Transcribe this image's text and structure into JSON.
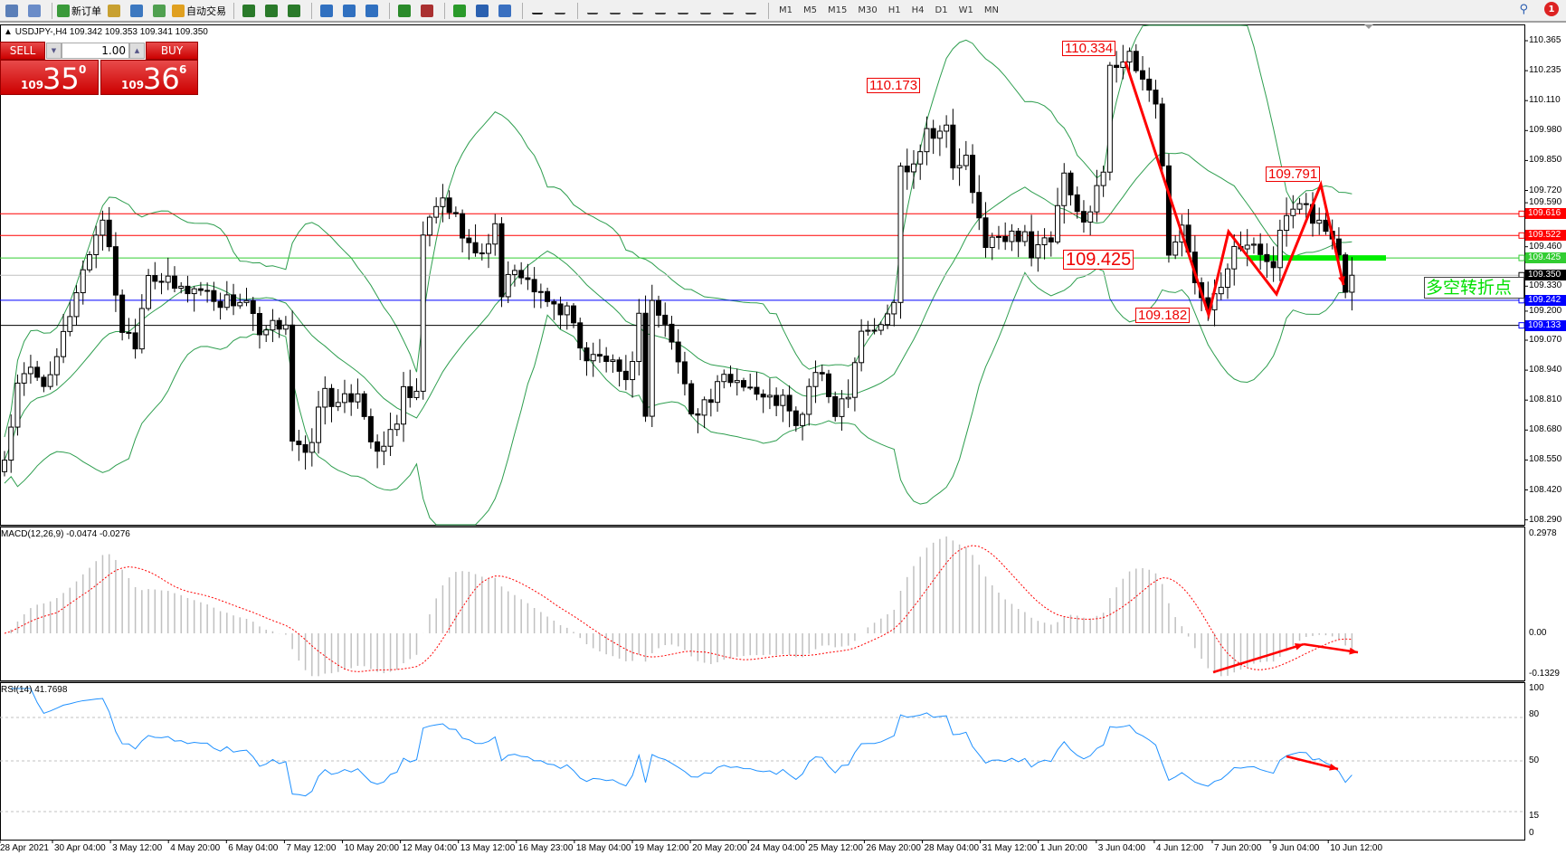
{
  "toolbar": {
    "new_order": "新订单",
    "auto_trading": "自动交易",
    "timeframes": [
      "M1",
      "M5",
      "M15",
      "M30",
      "H1",
      "H4",
      "D1",
      "W1",
      "MN"
    ],
    "notification_count": "1",
    "icons": [
      "file-icon",
      "zoom-chart-icon",
      "new-order-icon",
      "gold-icon",
      "history-icon",
      "signal-icon",
      "auto-trading-icon",
      "bar-chart-icon",
      "candle-chart-icon",
      "line-chart-icon",
      "zoom-in-icon",
      "zoom-out-icon",
      "tile-windows-icon",
      "auto-scroll-icon",
      "chart-shift-icon",
      "indicators-icon",
      "periods-icon",
      "templates-icon",
      "cursor-icon",
      "crosshair-icon",
      "vertical-line-icon",
      "horizontal-line-icon",
      "trendline-icon",
      "equidistant-channel-icon",
      "fibonacci-icon",
      "text-icon",
      "text-label-icon",
      "arrows-icon"
    ]
  },
  "symbol": {
    "info": "USDJPY-,H4  109.342 109.353 109.341 109.350"
  },
  "trade": {
    "sell": "SELL",
    "buy": "BUY",
    "lot": "1.00",
    "sell_big": "109",
    "sell_main": "35",
    "sell_sup": "0",
    "buy_big": "109",
    "buy_main": "36",
    "buy_sup": "6",
    "color": "#d01010"
  },
  "price_axis": [
    "110.365",
    "110.235",
    "110.110",
    "109.980",
    "109.850",
    "109.720",
    "109.590",
    "109.460",
    "109.330",
    "109.200",
    "109.070",
    "108.940",
    "108.810",
    "108.680",
    "108.550",
    "108.420",
    "108.290"
  ],
  "hlines": [
    {
      "price": 109.616,
      "label": "109.616",
      "color": "#ff0000"
    },
    {
      "price": 109.522,
      "label": "109.522",
      "color": "#ff0000"
    },
    {
      "price": 109.425,
      "label": "109.425",
      "color": "#32cd32"
    },
    {
      "price": 109.35,
      "label": "109.350",
      "color": "#000000"
    },
    {
      "price": 109.242,
      "label": "109.242",
      "color": "#0000ff"
    },
    {
      "price": 109.133,
      "label": "109.133",
      "color": "#0000ff"
    }
  ],
  "annotations": {
    "a1": "110.334",
    "a2": "110.173",
    "a3": "109.791",
    "a4": "109.425",
    "a5": "109.182",
    "turning_point": "多空转折点"
  },
  "macd": {
    "label": "MACD(12,26,9) -0.0474 -0.0276",
    "axis": [
      "0.2978",
      "0.00",
      "-0.1329"
    ]
  },
  "rsi": {
    "label": "RSI(14) 41.7698",
    "axis": [
      "100",
      "80",
      "50",
      "15",
      "0"
    ]
  },
  "time_axis": [
    "28 Apr 2021",
    "30 Apr 04:00",
    "3 May 12:00",
    "4 May 20:00",
    "6 May 04:00",
    "7 May 12:00",
    "10 May 20:00",
    "12 May 04:00",
    "13 May 12:00",
    "16 May 23:00",
    "18 May 04:00",
    "19 May 12:00",
    "20 May 20:00",
    "24 May 04:00",
    "25 May 12:00",
    "26 May 20:00",
    "28 May 04:00",
    "31 May 12:00",
    "1 Jun 20:00",
    "3 Jun 04:00",
    "4 Jun 12:00",
    "7 Jun 20:00",
    "9 Jun 04:00",
    "10 Jun 12:00"
  ],
  "chart_data": {
    "type": "candlestick",
    "symbol": "USDJPY",
    "timeframe": "H4",
    "ylim": [
      108.29,
      110.365
    ],
    "close_waypoints": [
      [
        0,
        108.55
      ],
      [
        2,
        108.86
      ],
      [
        4,
        108.94
      ],
      [
        7,
        108.88
      ],
      [
        11,
        109.29
      ],
      [
        15,
        109.61
      ],
      [
        18,
        109.12
      ],
      [
        20,
        109.07
      ],
      [
        22,
        109.37
      ],
      [
        26,
        109.29
      ],
      [
        30,
        109.29
      ],
      [
        33,
        109.24
      ],
      [
        37,
        109.24
      ],
      [
        39,
        109.07
      ],
      [
        41,
        109.12
      ],
      [
        43,
        109.16
      ],
      [
        44,
        108.64
      ],
      [
        46,
        108.55
      ],
      [
        49,
        108.86
      ],
      [
        51,
        108.77
      ],
      [
        54,
        108.86
      ],
      [
        57,
        108.55
      ],
      [
        60,
        108.73
      ],
      [
        61,
        108.83
      ],
      [
        63,
        108.81
      ],
      [
        64,
        109.53
      ],
      [
        67,
        109.68
      ],
      [
        70,
        109.55
      ],
      [
        72,
        109.42
      ],
      [
        75,
        109.55
      ],
      [
        76,
        109.29
      ],
      [
        79,
        109.37
      ],
      [
        82,
        109.24
      ],
      [
        86,
        109.2
      ],
      [
        89,
        108.99
      ],
      [
        92,
        108.99
      ],
      [
        95,
        108.86
      ],
      [
        97,
        109.16
      ],
      [
        98,
        108.77
      ],
      [
        99,
        109.24
      ],
      [
        102,
        109.07
      ],
      [
        105,
        108.77
      ],
      [
        108,
        108.81
      ],
      [
        110,
        108.9
      ],
      [
        113,
        108.9
      ],
      [
        116,
        108.81
      ],
      [
        119,
        108.81
      ],
      [
        121,
        108.68
      ],
      [
        124,
        108.94
      ],
      [
        127,
        108.77
      ],
      [
        129,
        108.86
      ],
      [
        131,
        109.12
      ],
      [
        134,
        109.12
      ],
      [
        136,
        109.24
      ],
      [
        137,
        109.81
      ],
      [
        139,
        109.85
      ],
      [
        141,
        109.98
      ],
      [
        144,
        109.98
      ],
      [
        145,
        109.81
      ],
      [
        147,
        109.85
      ],
      [
        148,
        109.68
      ],
      [
        150,
        109.5
      ],
      [
        153,
        109.5
      ],
      [
        156,
        109.55
      ],
      [
        157,
        109.44
      ],
      [
        160,
        109.5
      ],
      [
        162,
        109.76
      ],
      [
        164,
        109.61
      ],
      [
        166,
        109.63
      ],
      [
        168,
        109.81
      ],
      [
        169,
        110.28
      ],
      [
        172,
        110.28
      ],
      [
        174,
        110.2
      ],
      [
        176,
        110.11
      ],
      [
        177,
        109.81
      ],
      [
        178,
        109.46
      ],
      [
        180,
        109.55
      ],
      [
        182,
        109.33
      ],
      [
        184,
        109.24
      ],
      [
        186,
        109.33
      ],
      [
        188,
        109.5
      ],
      [
        191,
        109.46
      ],
      [
        194,
        109.42
      ],
      [
        196,
        109.61
      ],
      [
        199,
        109.63
      ],
      [
        202,
        109.55
      ],
      [
        204,
        109.44
      ],
      [
        205,
        109.31
      ],
      [
        206,
        109.35
      ]
    ],
    "indicators": [
      "Bollinger Bands",
      "MACD(12,26,9)",
      "RSI(14)"
    ],
    "colors": {
      "bands": "#2e9e4f",
      "macd_signal": "#ff0000",
      "macd_hist": "#c0c0c0",
      "rsi": "#1e90ff"
    }
  }
}
